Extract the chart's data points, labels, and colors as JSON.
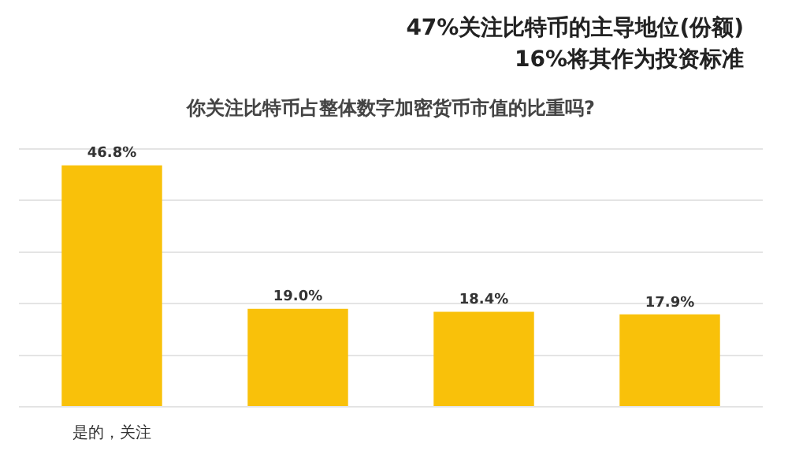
{
  "chart_data": {
    "type": "bar",
    "title": "你关注比特币占整体数字加密货币市值的比重吗?",
    "annotations": [
      "47%关注比特币的主导地位(份额)",
      "16%将其作为投资标准"
    ],
    "categories": [
      "是的，关注",
      null,
      null,
      null
    ],
    "values": [
      46.8,
      19.0,
      18.4,
      17.9
    ],
    "value_labels": [
      "46.8%",
      "19.0%",
      "18.4%",
      "17.9%"
    ],
    "color": "#f9c10a",
    "ylim": [
      0,
      50
    ],
    "yticks": [
      {
        "value": 0,
        "label": null
      },
      {
        "value": 10,
        "label": null
      },
      {
        "value": 20,
        "label": null
      },
      {
        "value": 30,
        "label": null
      },
      {
        "value": 40,
        "label": null
      },
      {
        "value": 50,
        "label": null
      }
    ],
    "tick_labels": "x",
    "grid": "y",
    "legend": false
  }
}
